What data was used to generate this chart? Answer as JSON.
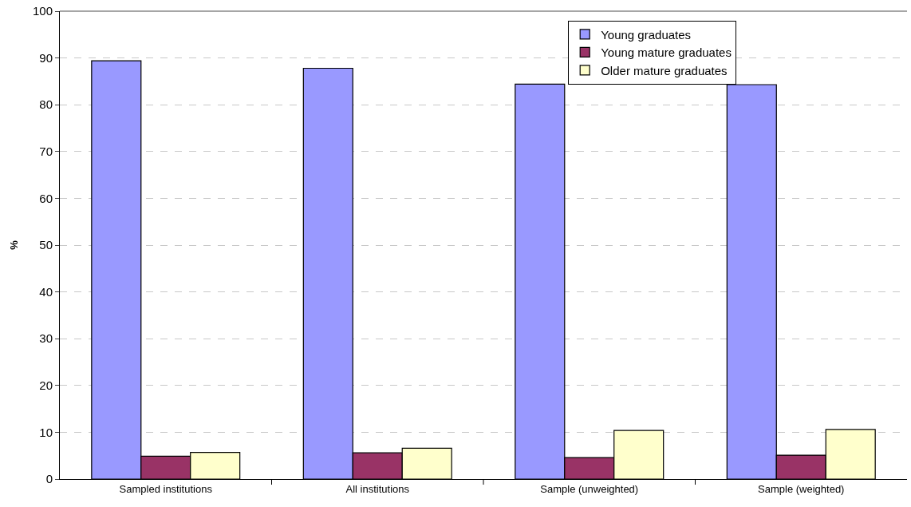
{
  "chart_data": {
    "type": "bar",
    "ylabel": "%",
    "categories": [
      "Sampled institutions",
      "All institutions",
      "Sample (unweighted)",
      "Sample (weighted)"
    ],
    "series": [
      {
        "name": "Young graduates",
        "color": "#9999ff",
        "values": [
          89.4,
          87.8,
          84.4,
          84.3
        ]
      },
      {
        "name": "Young mature graduates",
        "color": "#993366",
        "values": [
          4.9,
          5.6,
          4.6,
          5.1
        ]
      },
      {
        "name": "Older mature graduates",
        "color": "#ffffcc",
        "values": [
          5.7,
          6.6,
          10.4,
          10.6
        ]
      }
    ],
    "ylim": [
      0,
      100
    ],
    "yticks": [
      0,
      10,
      20,
      30,
      40,
      50,
      60,
      70,
      80,
      90,
      100
    ],
    "grid": "y",
    "legend": "top right"
  }
}
